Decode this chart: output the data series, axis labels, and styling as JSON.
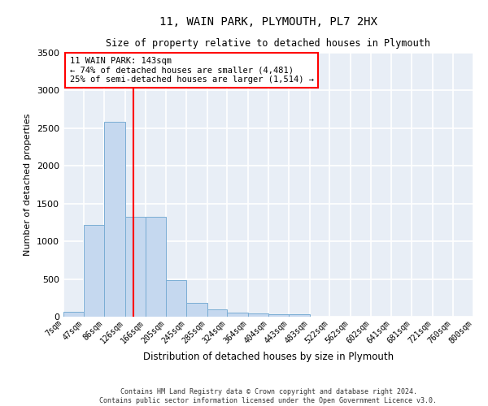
{
  "title1": "11, WAIN PARK, PLYMOUTH, PL7 2HX",
  "title2": "Size of property relative to detached houses in Plymouth",
  "xlabel": "Distribution of detached houses by size in Plymouth",
  "ylabel": "Number of detached properties",
  "bar_color": "#c5d8ef",
  "bar_edge_color": "#7aadd4",
  "background_color": "#e8eef6",
  "grid_color": "#ffffff",
  "bins": [
    "7sqm",
    "47sqm",
    "86sqm",
    "126sqm",
    "166sqm",
    "205sqm",
    "245sqm",
    "285sqm",
    "324sqm",
    "364sqm",
    "404sqm",
    "443sqm",
    "483sqm",
    "522sqm",
    "562sqm",
    "602sqm",
    "641sqm",
    "681sqm",
    "721sqm",
    "760sqm",
    "800sqm"
  ],
  "values": [
    60,
    1220,
    2580,
    1330,
    1330,
    490,
    185,
    100,
    50,
    45,
    35,
    35,
    0,
    0,
    0,
    0,
    0,
    0,
    0,
    0
  ],
  "bin_edges": [
    7,
    47,
    86,
    126,
    166,
    205,
    245,
    285,
    324,
    364,
    404,
    443,
    483,
    522,
    562,
    602,
    641,
    681,
    721,
    760,
    800
  ],
  "red_line_x": 143,
  "ylim": [
    0,
    3500
  ],
  "yticks": [
    0,
    500,
    1000,
    1500,
    2000,
    2500,
    3000,
    3500
  ],
  "annotation_line1": "11 WAIN PARK: 143sqm",
  "annotation_line2": "← 74% of detached houses are smaller (4,481)",
  "annotation_line3": "25% of semi-detached houses are larger (1,514) →",
  "footer1": "Contains HM Land Registry data © Crown copyright and database right 2024.",
  "footer2": "Contains public sector information licensed under the Open Government Licence v3.0."
}
